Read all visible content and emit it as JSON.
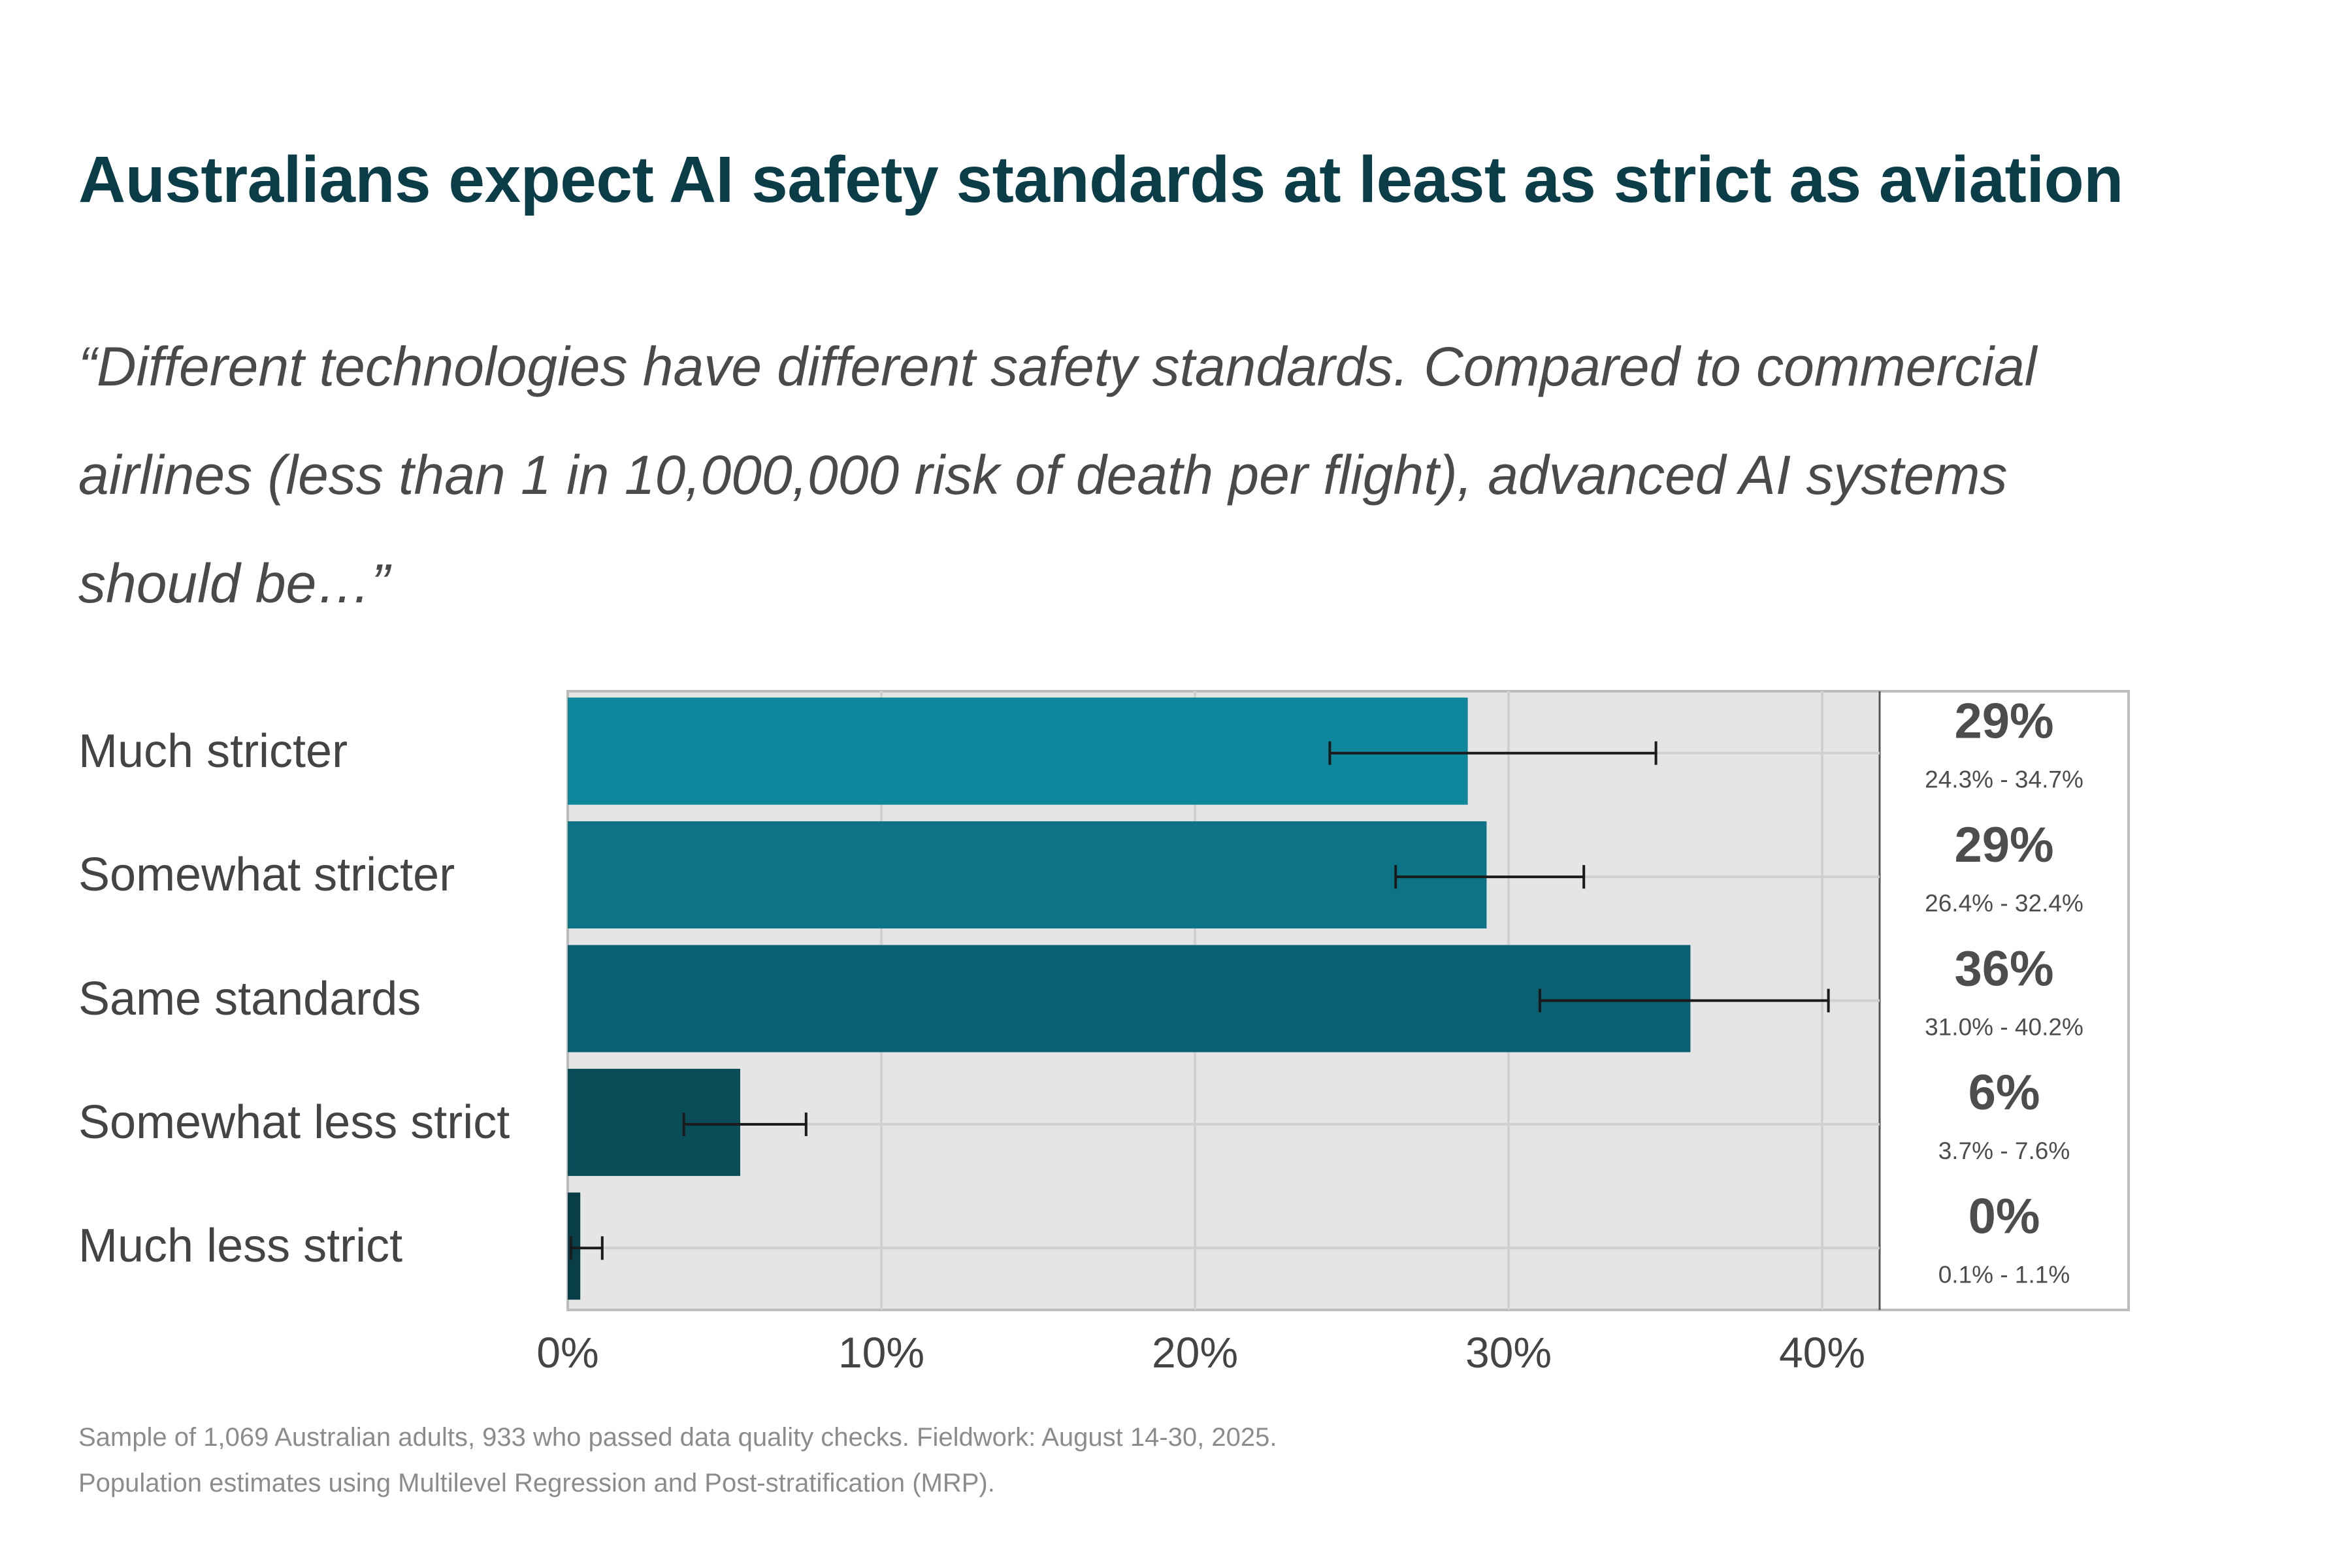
{
  "title": "Australians expect AI safety standards at least as strict as aviation",
  "quote": "“Different technologies have different safety standards. Compared to commercial airlines (less than 1 in 10,000,000 risk of death per flight), advanced AI systems should be…”",
  "footer": {
    "line1": "Sample of 1,069 Australian adults, 933 who passed data quality checks. Fieldwork: August 14-30, 2025.",
    "line2": "Population estimates using Multilevel Regression and Post-stratification (MRP)."
  },
  "chart_data": {
    "type": "bar",
    "orientation": "horizontal",
    "title": "Australians expect AI safety standards at least as strict as aviation",
    "xlabel": "",
    "ylabel": "",
    "xlim": [
      0,
      42
    ],
    "grid": true,
    "x_ticks": [
      "0%",
      "10%",
      "20%",
      "30%",
      "40%"
    ],
    "x_tick_values": [
      0,
      10,
      20,
      30,
      40
    ],
    "categories": [
      "Much stricter",
      "Somewhat stricter",
      "Same standards",
      "Somewhat less strict",
      "Much less strict"
    ],
    "values": [
      28.7,
      29.3,
      35.8,
      5.5,
      0.4
    ],
    "ci_low": [
      24.3,
      26.4,
      31.0,
      3.7,
      0.1
    ],
    "ci_high": [
      34.7,
      32.4,
      40.2,
      7.6,
      1.1
    ],
    "value_labels": [
      "29%",
      "29%",
      "36%",
      "6%",
      "0%"
    ],
    "ci_labels": [
      "24.3% - 34.7%",
      "26.4% - 32.4%",
      "31.0% - 40.2%",
      "3.7% - 7.6%",
      "0.1% - 1.1%"
    ],
    "colors": [
      "#0e879c",
      "#0c7486",
      "#0a6070",
      "#094d58",
      "#073e47"
    ],
    "panel_bg": "#e5e5e5",
    "grid_color": "#d0d0d0",
    "border_color": "#bdbdbd"
  }
}
